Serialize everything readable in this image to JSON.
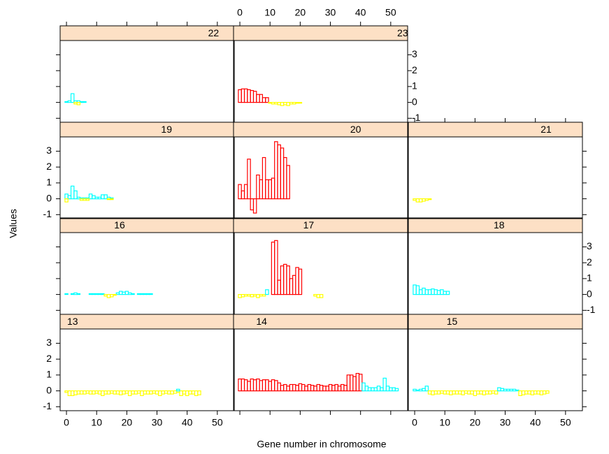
{
  "chart_data": {
    "type": "lattice",
    "xlabel": "Gene number in chromosome",
    "ylabel": "Values",
    "xlim": [
      -2.1,
      55.6
    ],
    "xticks": [
      0,
      10,
      20,
      30,
      40,
      50
    ],
    "ylim": [
      -1.25,
      3.9
    ],
    "yticks": [
      -1,
      0,
      1,
      2,
      3
    ],
    "strip_color": "#fde0c5",
    "panels": [
      {
        "label": "13",
        "series": [
          {
            "color": "#ffff00",
            "x": [
              0,
              1,
              2,
              3,
              4,
              5,
              6,
              7,
              8,
              9,
              10,
              11,
              12,
              13,
              14,
              15,
              16,
              17,
              18,
              19,
              20,
              21,
              22,
              23,
              24,
              25,
              26,
              27,
              28,
              29,
              30,
              31,
              32,
              33,
              34,
              35,
              36,
              37,
              38,
              39,
              40,
              41,
              42,
              43,
              44
            ],
            "values": [
              -0.1,
              -0.3,
              -0.3,
              -0.25,
              -0.2,
              -0.2,
              -0.2,
              -0.15,
              -0.2,
              -0.2,
              -0.15,
              -0.2,
              -0.3,
              -0.2,
              -0.2,
              -0.15,
              -0.2,
              -0.2,
              -0.25,
              -0.2,
              -0.15,
              -0.3,
              -0.2,
              -0.2,
              -0.15,
              -0.3,
              -0.2,
              -0.2,
              -0.2,
              -0.15,
              -0.2,
              -0.3,
              -0.2,
              -0.15,
              -0.2,
              -0.2,
              -0.15,
              -0.1,
              -0.3,
              -0.2,
              -0.3,
              -0.2,
              -0.2,
              -0.3,
              -0.25
            ]
          },
          {
            "color": "#00ffff",
            "x": [
              37
            ],
            "values": [
              0.1
            ]
          }
        ]
      },
      {
        "label": "14",
        "series": [
          {
            "color": "#ff0000",
            "x": [
              0,
              1,
              2,
              3,
              4,
              5,
              6,
              7,
              8,
              9,
              10,
              11,
              12,
              13,
              14,
              15,
              16,
              17,
              18,
              19,
              20,
              21,
              22,
              23,
              24,
              25,
              26,
              27,
              28,
              29,
              30,
              31,
              32,
              33,
              34,
              35,
              36,
              37,
              38,
              39,
              40
            ],
            "values": [
              0.75,
              0.75,
              0.7,
              0.6,
              0.75,
              0.7,
              0.75,
              0.65,
              0.7,
              0.7,
              0.6,
              0.7,
              0.65,
              0.5,
              0.35,
              0.4,
              0.3,
              0.4,
              0.4,
              0.35,
              0.45,
              0.4,
              0.3,
              0.4,
              0.35,
              0.3,
              0.4,
              0.35,
              0.3,
              0.3,
              0.4,
              0.35,
              0.4,
              0.3,
              0.4,
              0.35,
              1.0,
              1.0,
              0.9,
              1.1,
              1.05
            ]
          },
          {
            "color": "#00ffff",
            "x": [
              41,
              42,
              43,
              44,
              45,
              46,
              47,
              48,
              49,
              50,
              51,
              52
            ],
            "values": [
              0.5,
              0.3,
              0.2,
              0.2,
              0.2,
              0.3,
              0.2,
              0.8,
              0.3,
              0.2,
              0.2,
              0.15
            ]
          }
        ]
      },
      {
        "label": "15",
        "series": [
          {
            "color": "#00ffff",
            "x": [
              0,
              1,
              2,
              3,
              4
            ],
            "values": [
              0.1,
              0.05,
              0.1,
              0.15,
              0.3
            ]
          },
          {
            "color": "#ffff00",
            "x": [
              5,
              6,
              7,
              8,
              9,
              10,
              11,
              12,
              13,
              14,
              15,
              16,
              17,
              18,
              19,
              20,
              21,
              22,
              23,
              24,
              25,
              26,
              27
            ],
            "values": [
              -0.2,
              -0.25,
              -0.2,
              -0.2,
              -0.15,
              -0.2,
              -0.2,
              -0.25,
              -0.2,
              -0.2,
              -0.2,
              -0.25,
              -0.15,
              -0.2,
              -0.2,
              -0.3,
              -0.2,
              -0.2,
              -0.25,
              -0.2,
              -0.2,
              -0.15,
              -0.2
            ]
          },
          {
            "color": "#00ffff",
            "x": [
              28,
              29,
              30,
              31,
              32,
              33,
              34
            ],
            "values": [
              0.2,
              0.15,
              0.1,
              0.1,
              0.1,
              0.1,
              0.05
            ]
          },
          {
            "color": "#ffff00",
            "x": [
              35,
              36,
              37,
              38,
              39,
              40,
              41,
              42,
              43,
              44
            ],
            "values": [
              -0.3,
              -0.25,
              -0.2,
              -0.2,
              -0.25,
              -0.2,
              -0.2,
              -0.25,
              -0.2,
              -0.15
            ]
          }
        ]
      },
      {
        "label": "16",
        "series": [
          {
            "color": "#00ffff",
            "x": [
              0,
              2,
              3,
              4,
              8,
              9,
              10,
              11,
              12,
              17,
              18,
              19,
              20,
              21,
              22,
              24,
              25,
              26,
              27,
              28
            ],
            "values": [
              0.05,
              0.05,
              0.1,
              0.05,
              0.05,
              0.05,
              0.05,
              0.05,
              0.05,
              0.1,
              0.2,
              0.15,
              0.2,
              0.1,
              0.05,
              0.05,
              0.05,
              0.05,
              0.05,
              0.05
            ]
          },
          {
            "color": "#ffff00",
            "x": [
              13,
              14,
              15,
              16
            ],
            "values": [
              -0.1,
              -0.2,
              -0.15,
              -0.05
            ]
          }
        ]
      },
      {
        "label": "17",
        "series": [
          {
            "color": "#ffff00",
            "x": [
              0,
              1,
              2,
              3,
              4,
              5,
              6,
              7,
              8
            ],
            "values": [
              -0.2,
              -0.15,
              -0.1,
              -0.1,
              -0.15,
              -0.1,
              -0.2,
              -0.1,
              -0.1
            ]
          },
          {
            "color": "#00ffff",
            "x": [
              9
            ],
            "values": [
              0.3
            ]
          },
          {
            "color": "#ff0000",
            "x": [
              11,
              12,
              13,
              14,
              15,
              16,
              17,
              18,
              19,
              20
            ],
            "values": [
              3.3,
              3.4,
              0.9,
              1.8,
              1.9,
              1.8,
              1.0,
              1.2,
              1.7,
              1.6
            ]
          },
          {
            "color": "#ffff00",
            "x": [
              25,
              26,
              27
            ],
            "values": [
              -0.1,
              -0.2,
              -0.2
            ]
          }
        ]
      },
      {
        "label": "18",
        "series": [
          {
            "color": "#00ffff",
            "x": [
              0,
              1,
              2,
              3,
              4,
              5,
              6,
              7,
              8,
              9,
              10,
              11
            ],
            "values": [
              0.6,
              0.55,
              0.3,
              0.4,
              0.3,
              0.3,
              0.35,
              0.3,
              0.25,
              0.3,
              0.2,
              0.2
            ]
          }
        ]
      },
      {
        "label": "19",
        "series": [
          {
            "color": "#00ffff",
            "x": [
              0,
              1,
              2,
              3,
              4,
              5,
              6,
              7,
              8,
              9,
              10,
              11,
              12,
              13,
              14,
              15
            ],
            "values": [
              0.3,
              0.2,
              0.8,
              0.5,
              0.1,
              0.05,
              0.05,
              0.05,
              0.3,
              0.2,
              0.1,
              0.1,
              0.25,
              0.25,
              0.1,
              0.05
            ]
          },
          {
            "color": "#ffff00",
            "x": [
              0,
              5,
              6,
              7,
              14,
              15
            ],
            "values": [
              -0.2,
              -0.1,
              -0.1,
              -0.1,
              -0.05,
              -0.05
            ]
          }
        ]
      },
      {
        "label": "20",
        "series": [
          {
            "color": "#ff0000",
            "x": [
              0,
              1,
              2,
              3,
              4,
              5,
              6,
              7,
              8,
              9,
              10,
              11,
              12,
              13,
              14,
              15,
              16
            ],
            "values": [
              0.9,
              0.5,
              0.9,
              2.5,
              -0.7,
              -0.9,
              1.5,
              1.2,
              2.6,
              1.2,
              1.2,
              1.3,
              3.6,
              3.4,
              3.2,
              2.6,
              2.1
            ]
          }
        ]
      },
      {
        "label": "21",
        "series": [
          {
            "color": "#ffff00",
            "x": [
              0,
              1,
              2,
              3,
              4,
              5
            ],
            "values": [
              -0.1,
              -0.2,
              -0.2,
              -0.15,
              -0.1,
              -0.05
            ]
          }
        ]
      },
      {
        "label": "22",
        "series": [
          {
            "color": "#00ffff",
            "x": [
              0,
              1,
              2,
              3,
              4,
              5,
              6
            ],
            "values": [
              0.05,
              0.1,
              0.55,
              0.1,
              0.1,
              0.05,
              0.05
            ]
          },
          {
            "color": "#ffff00",
            "x": [
              3,
              4
            ],
            "values": [
              -0.1,
              -0.15
            ]
          }
        ]
      },
      {
        "label": "23",
        "series": [
          {
            "color": "#ff0000",
            "x": [
              0,
              1,
              2,
              3,
              4,
              5,
              6,
              7,
              8,
              9
            ],
            "values": [
              0.8,
              0.85,
              0.85,
              0.8,
              0.75,
              0.7,
              0.5,
              0.5,
              0.3,
              0.3
            ]
          },
          {
            "color": "#ffff00",
            "x": [
              10,
              11,
              12,
              13,
              14,
              15,
              16,
              17,
              18,
              19,
              20
            ],
            "values": [
              -0.05,
              -0.1,
              -0.1,
              -0.15,
              -0.2,
              -0.15,
              -0.2,
              -0.1,
              -0.1,
              -0.05,
              -0.05
            ]
          }
        ]
      }
    ]
  }
}
